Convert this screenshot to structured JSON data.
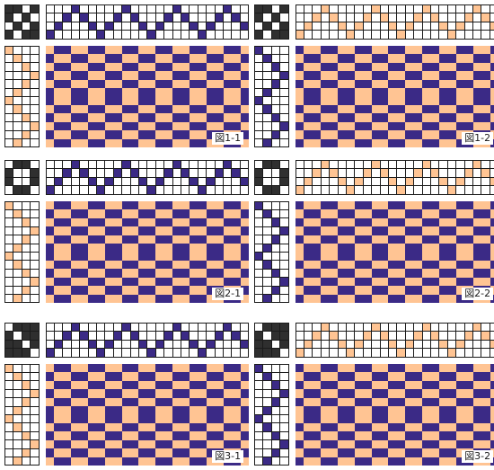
{
  "colors": {
    "purple": "#3b2a86",
    "peach": "#ffc493",
    "black": "#2f2f2f",
    "white": "#ffffff",
    "gridline": "#1b1b1b"
  },
  "figures": [
    {
      "label": "図1-1",
      "warp_color": "purple",
      "weft_color": "peach",
      "tieup_rows": [
        "1101",
        "1010",
        "0101",
        "1011"
      ]
    },
    {
      "label": "図1-2",
      "warp_color": "peach",
      "weft_color": "purple",
      "tieup_rows": [
        "1101",
        "1010",
        "0101",
        "1011"
      ]
    },
    {
      "label": "図2-1",
      "warp_color": "purple",
      "weft_color": "peach",
      "tieup_rows": [
        "0110",
        "1001",
        "1001",
        "0110"
      ]
    },
    {
      "label": "図2-2",
      "warp_color": "peach",
      "weft_color": "purple",
      "tieup_rows": [
        "0110",
        "1001",
        "1001",
        "0110"
      ]
    },
    {
      "label": "図3-1",
      "warp_color": "purple",
      "weft_color": "peach",
      "tieup_rows": [
        "0111",
        "1011",
        "1101",
        "1110"
      ]
    },
    {
      "label": "図3-2",
      "warp_color": "peach",
      "weft_color": "purple",
      "tieup_rows": [
        "0111",
        "1011",
        "1101",
        "1110"
      ]
    }
  ]
}
